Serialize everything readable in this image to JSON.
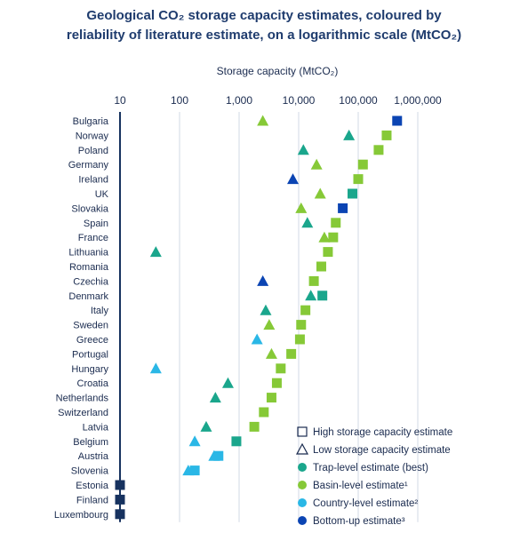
{
  "chart_data": {
    "type": "scatter",
    "title_line1": "Geological CO₂ storage capacity estimates, coloured by",
    "title_line2": "reliability of literature estimate, on a logarithmic scale (MtCO₂)",
    "xlabel": "Storage capacity (MtCO₂)",
    "x_scale": "log",
    "xlim": [
      10,
      1000000
    ],
    "x_ticks": [
      {
        "value": 10,
        "label": "10"
      },
      {
        "value": 100,
        "label": "100"
      },
      {
        "value": 1000,
        "label": "1,000"
      },
      {
        "value": 10000,
        "label": "10,000"
      },
      {
        "value": 100000,
        "label": "100,000"
      },
      {
        "value": 1000000,
        "label": "1,000,000"
      }
    ],
    "grid": "vertical",
    "legend_position": "bottom-right",
    "colors": {
      "trap": "#1aa68c",
      "basin": "#86c937",
      "country": "#2ab7e6",
      "bottom_up": "#0b44b3",
      "none": "#17325f",
      "grid": "#c7cfdf",
      "text": "#1a2b4f",
      "title": "#1f3c6e"
    },
    "legend": [
      {
        "label": "High storage capacity estimate",
        "shape": "square-outline"
      },
      {
        "label": "Low storage capacity estimate",
        "shape": "triangle-outline"
      },
      {
        "label": "Trap-level estimate (best)",
        "shape": "circle",
        "color": "#1aa68c"
      },
      {
        "label": "Basin-level estimate¹",
        "shape": "circle",
        "color": "#86c937"
      },
      {
        "label": "Country-level estimate²",
        "shape": "circle",
        "color": "#2ab7e6"
      },
      {
        "label": "Bottom-up estimate³",
        "shape": "circle",
        "color": "#0b44b3"
      }
    ],
    "countries": [
      {
        "name": "Bulgaria",
        "low": 2500,
        "low_color": "#86c937",
        "high": 450000,
        "high_color": "#0b44b3"
      },
      {
        "name": "Norway",
        "low": 70000,
        "low_color": "#1aa68c",
        "high": 300000,
        "high_color": "#86c937"
      },
      {
        "name": "Poland",
        "low": 12000,
        "low_color": "#1aa68c",
        "high": 220000,
        "high_color": "#86c937"
      },
      {
        "name": "Germany",
        "low": 20000,
        "low_color": "#86c937",
        "high": 120000,
        "high_color": "#86c937"
      },
      {
        "name": "Ireland",
        "low": 8000,
        "low_color": "#0b44b3",
        "high": 100000,
        "high_color": "#86c937"
      },
      {
        "name": "UK",
        "low": 23000,
        "low_color": "#86c937",
        "high": 80000,
        "high_color": "#1aa68c"
      },
      {
        "name": "Slovakia",
        "low": 11000,
        "low_color": "#86c937",
        "high": 55000,
        "high_color": "#0b44b3"
      },
      {
        "name": "Spain",
        "low": 14000,
        "low_color": "#1aa68c",
        "high": 42000,
        "high_color": "#86c937"
      },
      {
        "name": "France",
        "low": 27000,
        "low_color": "#86c937",
        "high": 38000,
        "high_color": "#86c937"
      },
      {
        "name": "Lithuania",
        "low": 40,
        "low_color": "#1aa68c",
        "high": 31000,
        "high_color": "#86c937"
      },
      {
        "name": "Romania",
        "low": null,
        "low_color": null,
        "high": 24000,
        "high_color": "#86c937"
      },
      {
        "name": "Czechia",
        "low": 2500,
        "low_color": "#0b44b3",
        "high": 18000,
        "high_color": "#86c937"
      },
      {
        "name": "Denmark",
        "low": 16000,
        "low_color": "#1aa68c",
        "high": 25000,
        "high_color": "#1aa68c"
      },
      {
        "name": "Italy",
        "low": 2800,
        "low_color": "#1aa68c",
        "high": 13000,
        "high_color": "#86c937"
      },
      {
        "name": "Sweden",
        "low": 3200,
        "low_color": "#86c937",
        "high": 11000,
        "high_color": "#86c937"
      },
      {
        "name": "Greece",
        "low": 2000,
        "low_color": "#2ab7e6",
        "high": 10500,
        "high_color": "#86c937"
      },
      {
        "name": "Portugal",
        "low": 3500,
        "low_color": "#86c937",
        "high": 7500,
        "high_color": "#86c937"
      },
      {
        "name": "Hungary",
        "low": 40,
        "low_color": "#2ab7e6",
        "high": 5000,
        "high_color": "#86c937"
      },
      {
        "name": "Croatia",
        "low": 650,
        "low_color": "#1aa68c",
        "high": 4300,
        "high_color": "#86c937"
      },
      {
        "name": "Netherlands",
        "low": 400,
        "low_color": "#1aa68c",
        "high": 3500,
        "high_color": "#86c937"
      },
      {
        "name": "Switzerland",
        "low": null,
        "low_color": null,
        "high": 2600,
        "high_color": "#86c937"
      },
      {
        "name": "Latvia",
        "low": 280,
        "low_color": "#1aa68c",
        "high": 1800,
        "high_color": "#86c937"
      },
      {
        "name": "Belgium",
        "low": 180,
        "low_color": "#2ab7e6",
        "high": 900,
        "high_color": "#1aa68c"
      },
      {
        "name": "Austria",
        "low": 380,
        "low_color": "#2ab7e6",
        "high": 450,
        "high_color": "#2ab7e6"
      },
      {
        "name": "Slovenia",
        "low": 140,
        "low_color": "#2ab7e6",
        "high": 180,
        "high_color": "#2ab7e6"
      },
      {
        "name": "Estonia",
        "low": null,
        "low_color": null,
        "high": 10,
        "high_color": "#17325f"
      },
      {
        "name": "Finland",
        "low": null,
        "low_color": null,
        "high": 10,
        "high_color": "#17325f"
      },
      {
        "name": "Luxembourg",
        "low": null,
        "low_color": null,
        "high": 10,
        "high_color": "#17325f"
      }
    ]
  }
}
